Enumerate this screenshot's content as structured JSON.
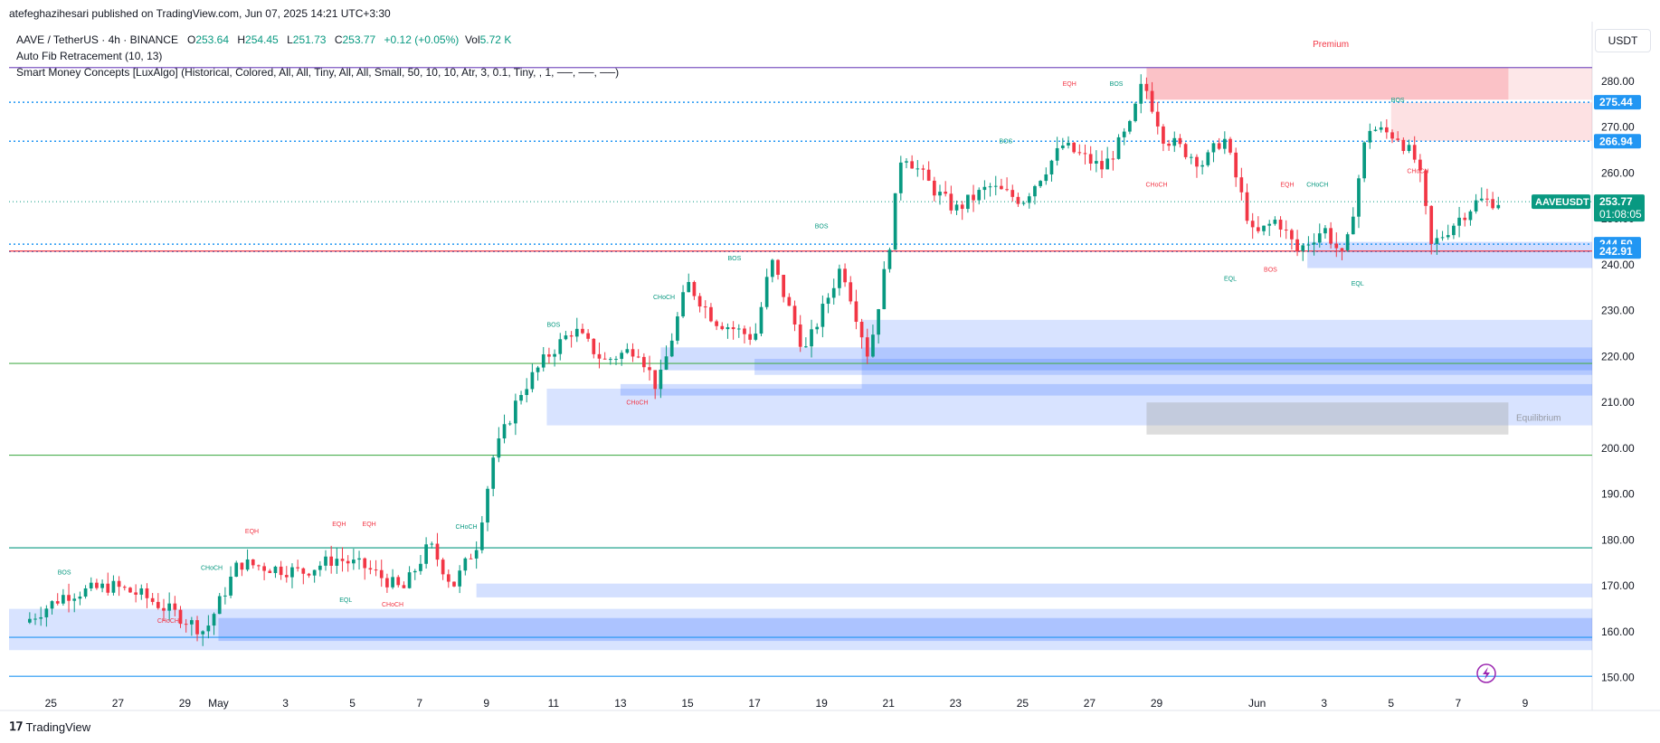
{
  "header": {
    "published_line": "atefeghazihesari published on TradingView.com, Jun 07, 2025 14:21 UTC+3:30"
  },
  "legend": {
    "symbol_line": "AAVE / TetherUS · 4h · BINANCE",
    "open_label": "O",
    "open": "253.64",
    "high_label": "H",
    "high": "254.45",
    "low_label": "L",
    "low": "251.73",
    "close_label": "C",
    "close": "253.77",
    "change": "+0.12 (+0.05%)",
    "vol_label": "Vol",
    "vol": "5.72 K",
    "indicator_1": "Auto Fib Retracement (10, 13)",
    "indicator_2": "Smart Money Concepts [LuxAlgo] (Historical, Colored, All, All, Tiny, All, All, Small, 50, 10, 10, Atr, 3, 0.1, Tiny, , 1, ──, ──, ──)"
  },
  "axis": {
    "unit": "USDT"
  },
  "footer": {
    "brand": "TradingView"
  },
  "colors": {
    "up": "#089981",
    "down": "#f23645",
    "blue_zone": "#2962ff",
    "fib_green": "#4caf50",
    "fib_blue": "#2196f3"
  },
  "chart_data": {
    "type": "candlestick",
    "title": "",
    "ylim": [
      146,
      293
    ],
    "y_ticks": [
      150,
      160,
      170,
      180,
      190,
      200,
      210,
      220,
      230,
      240,
      250,
      260,
      270,
      280,
      290
    ],
    "y_tick_labels": [
      "150.00",
      "160.00",
      "170.00",
      "180.00",
      "190.00",
      "200.00",
      "210.00",
      "220.00",
      "230.00",
      "240.00",
      "250.00",
      "260.00",
      "270.00",
      "280.00",
      "290.00"
    ],
    "x_range_days": [
      -6.25,
      41.0
    ],
    "x_ticks": [
      {
        "label": "25",
        "day": -5
      },
      {
        "label": "27",
        "day": -3
      },
      {
        "label": "29",
        "day": -1
      },
      {
        "label": "May",
        "day": 0
      },
      {
        "label": "3",
        "day": 2
      },
      {
        "label": "5",
        "day": 4
      },
      {
        "label": "7",
        "day": 6
      },
      {
        "label": "9",
        "day": 8
      },
      {
        "label": "11",
        "day": 10
      },
      {
        "label": "13",
        "day": 12
      },
      {
        "label": "15",
        "day": 14
      },
      {
        "label": "17",
        "day": 16
      },
      {
        "label": "19",
        "day": 18
      },
      {
        "label": "21",
        "day": 20
      },
      {
        "label": "23",
        "day": 22
      },
      {
        "label": "25",
        "day": 24
      },
      {
        "label": "27",
        "day": 26
      },
      {
        "label": "29",
        "day": 28
      },
      {
        "label": "Jun",
        "day": 31
      },
      {
        "label": "3",
        "day": 33
      },
      {
        "label": "5",
        "day": 35
      },
      {
        "label": "7",
        "day": 37
      },
      {
        "label": "9",
        "day": 39
      }
    ],
    "candles_per_day": 6,
    "candle_start_day": -5.8,
    "close_path_keypoints": [
      [
        -5.8,
        162
      ],
      [
        -4.6,
        168
      ],
      [
        -3.2,
        170
      ],
      [
        -2.3,
        168
      ],
      [
        -1.3,
        164
      ],
      [
        -0.4,
        160
      ],
      [
        0.6,
        175
      ],
      [
        1.5,
        174
      ],
      [
        2.5,
        173
      ],
      [
        3.5,
        176
      ],
      [
        4.4,
        174
      ],
      [
        5.5,
        169
      ],
      [
        6.3,
        179
      ],
      [
        7.0,
        170
      ],
      [
        7.7,
        179
      ],
      [
        8.2,
        198
      ],
      [
        9.0,
        212
      ],
      [
        9.8,
        220
      ],
      [
        10.6,
        226
      ],
      [
        11.5,
        219
      ],
      [
        12.5,
        222
      ],
      [
        13.1,
        213
      ],
      [
        14.0,
        236
      ],
      [
        14.8,
        228
      ],
      [
        16.0,
        224
      ],
      [
        16.5,
        241
      ],
      [
        17.5,
        221
      ],
      [
        18.6,
        240
      ],
      [
        19.4,
        220
      ],
      [
        20.0,
        243
      ],
      [
        20.4,
        265
      ],
      [
        21.4,
        256
      ],
      [
        22.0,
        252
      ],
      [
        23.0,
        257
      ],
      [
        24.0,
        254
      ],
      [
        25.2,
        266
      ],
      [
        26.4,
        261
      ],
      [
        27.2,
        270
      ],
      [
        27.6,
        280
      ],
      [
        28.2,
        268
      ],
      [
        29.4,
        262
      ],
      [
        30.0,
        268
      ],
      [
        30.9,
        246
      ],
      [
        31.6,
        250
      ],
      [
        32.2,
        243
      ],
      [
        33.0,
        248
      ],
      [
        33.6,
        241
      ],
      [
        34.3,
        270
      ],
      [
        35.2,
        268
      ],
      [
        35.8,
        262
      ],
      [
        36.2,
        244
      ],
      [
        37.0,
        250
      ],
      [
        37.6,
        254
      ],
      [
        38.3,
        253.77
      ]
    ],
    "price_tags": [
      {
        "value": 275.44,
        "label": "275.44",
        "color": "#2196f3"
      },
      {
        "value": 266.94,
        "label": "266.94",
        "color": "#2196f3"
      },
      {
        "value": 244.5,
        "label": "244.50",
        "color": "#2196f3"
      },
      {
        "value": 242.91,
        "label": "242.91",
        "color": "#2196f3"
      }
    ],
    "current_price": {
      "value": 253.77,
      "symbol": "AAVEUSDT",
      "label": "253.77",
      "countdown": "01:08:05",
      "color": "#089981"
    },
    "hlines": [
      {
        "value": 283.0,
        "color": "#7e57c2",
        "style": "solid"
      },
      {
        "value": 275.44,
        "color": "#2196f3",
        "style": "dotted"
      },
      {
        "value": 266.94,
        "color": "#2196f3",
        "style": "dotted"
      },
      {
        "value": 244.5,
        "color": "#2196f3",
        "style": "dotted"
      },
      {
        "value": 242.91,
        "color": "#2196f3",
        "style": "dotted"
      },
      {
        "value": 243.0,
        "color": "#f23645",
        "style": "solid"
      },
      {
        "value": 218.5,
        "color": "#4caf50",
        "style": "solid"
      },
      {
        "value": 198.5,
        "color": "#4caf50",
        "style": "solid"
      },
      {
        "value": 178.3,
        "color": "#089981",
        "style": "solid"
      },
      {
        "value": 158.8,
        "color": "#2196f3",
        "style": "solid"
      },
      {
        "value": 150.3,
        "color": "#2196f3",
        "style": "solid"
      }
    ],
    "zones": [
      {
        "x0": 27.7,
        "x1": 38.5,
        "y0": 276,
        "y1": 283,
        "fill": "#f23645",
        "opacity": 0.3
      },
      {
        "x0": 38.5,
        "x1": 41.0,
        "y0": 276,
        "y1": 283,
        "fill": "#f23645",
        "opacity": 0.12
      },
      {
        "x0": 35.0,
        "x1": 41.0,
        "y0": 267,
        "y1": 275.4,
        "fill": "#f23645",
        "opacity": 0.15
      },
      {
        "x0": 32.5,
        "x1": 41.0,
        "y0": 239.3,
        "y1": 245.0,
        "fill": "#2962ff",
        "opacity": 0.22
      },
      {
        "x0": 19.2,
        "x1": 41.0,
        "y0": 213,
        "y1": 228,
        "fill": "#2962ff",
        "opacity": 0.18
      },
      {
        "x0": 13.2,
        "x1": 41.0,
        "y0": 217,
        "y1": 222,
        "fill": "#2962ff",
        "opacity": 0.22
      },
      {
        "x0": 16.0,
        "x1": 41.0,
        "y0": 216,
        "y1": 219.5,
        "fill": "#2962ff",
        "opacity": 0.2
      },
      {
        "x0": 9.8,
        "x1": 41.0,
        "y0": 205,
        "y1": 213,
        "fill": "#2962ff",
        "opacity": 0.18
      },
      {
        "x0": 12.0,
        "x1": 41.0,
        "y0": 211.5,
        "y1": 214,
        "fill": "#2962ff",
        "opacity": 0.22
      },
      {
        "x0": 27.7,
        "x1": 38.5,
        "y0": 203,
        "y1": 210,
        "fill": "#9e9e9e",
        "opacity": 0.35
      },
      {
        "x0": 7.7,
        "x1": 41.0,
        "y0": 167.5,
        "y1": 170.5,
        "fill": "#2962ff",
        "opacity": 0.2
      },
      {
        "x0": -6.25,
        "x1": 41.0,
        "y0": 156,
        "y1": 165,
        "fill": "#2962ff",
        "opacity": 0.18
      },
      {
        "x0": 0.0,
        "x1": 41.0,
        "y0": 158,
        "y1": 163,
        "fill": "#2962ff",
        "opacity": 0.25
      }
    ],
    "zone_labels": [
      {
        "text": "Premium",
        "day": 33.2,
        "value": 287.5,
        "color": "#f23645"
      },
      {
        "text": "Equilibrium",
        "day": 39.4,
        "value": 206.0,
        "color": "#9598a1"
      }
    ],
    "structure_labels": [
      {
        "text": "BOS",
        "day": -4.6,
        "value": 172.5,
        "color": "#089981"
      },
      {
        "text": "CHoCH",
        "day": -1.5,
        "value": 162.0,
        "color": "#f23645"
      },
      {
        "text": "CHoCH",
        "day": -0.2,
        "value": 173.5,
        "color": "#089981"
      },
      {
        "text": "EQH",
        "day": 1.0,
        "value": 181.5,
        "color": "#f23645"
      },
      {
        "text": "EQH",
        "day": 3.6,
        "value": 183.0,
        "color": "#f23645"
      },
      {
        "text": "EQH",
        "day": 4.5,
        "value": 183.0,
        "color": "#f23645"
      },
      {
        "text": "EQL",
        "day": 3.8,
        "value": 166.5,
        "color": "#089981"
      },
      {
        "text": "CHoCH",
        "day": 5.2,
        "value": 165.5,
        "color": "#f23645"
      },
      {
        "text": "CHoCH",
        "day": 7.4,
        "value": 182.5,
        "color": "#089981"
      },
      {
        "text": "BOS",
        "day": 10.0,
        "value": 226.5,
        "color": "#089981"
      },
      {
        "text": "CHoCH",
        "day": 12.5,
        "value": 209.5,
        "color": "#f23645"
      },
      {
        "text": "CHoCH",
        "day": 13.3,
        "value": 232.5,
        "color": "#089981"
      },
      {
        "text": "BOS",
        "day": 15.4,
        "value": 241.0,
        "color": "#089981"
      },
      {
        "text": "BOS",
        "day": 18.0,
        "value": 248.0,
        "color": "#089981"
      },
      {
        "text": "BOS",
        "day": 23.5,
        "value": 266.5,
        "color": "#089981"
      },
      {
        "text": "EQH",
        "day": 25.4,
        "value": 279.0,
        "color": "#f23645"
      },
      {
        "text": "BOS",
        "day": 26.8,
        "value": 279.0,
        "color": "#089981"
      },
      {
        "text": "CHoCH",
        "day": 28.0,
        "value": 257.0,
        "color": "#f23645"
      },
      {
        "text": "EQL",
        "day": 30.2,
        "value": 236.5,
        "color": "#089981"
      },
      {
        "text": "BOS",
        "day": 31.4,
        "value": 238.5,
        "color": "#f23645"
      },
      {
        "text": "EQH",
        "day": 31.9,
        "value": 257.0,
        "color": "#f23645"
      },
      {
        "text": "CHoCH",
        "day": 32.8,
        "value": 257.0,
        "color": "#089981"
      },
      {
        "text": "EQL",
        "day": 34.0,
        "value": 235.5,
        "color": "#089981"
      },
      {
        "text": "BOS",
        "day": 35.2,
        "value": 275.5,
        "color": "#089981"
      },
      {
        "text": "CHoCH",
        "day": 35.8,
        "value": 260.0,
        "color": "#f23645"
      }
    ]
  }
}
